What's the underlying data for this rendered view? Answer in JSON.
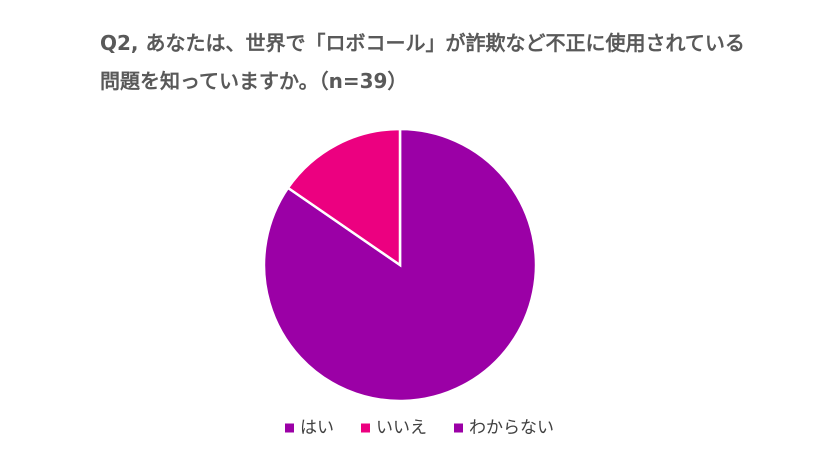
{
  "chart_data": {
    "type": "pie",
    "title": "Q2, あなたは、世界で「ロボコール」が詐欺など不正に使用されている問題を知っていますか。（n=39）",
    "categories": [
      "はい",
      "いいえ",
      "わからない"
    ],
    "values": [
      84.6,
      15.4,
      0
    ],
    "colors": [
      "#9b00a6",
      "#ec0080",
      "#9b00a6"
    ],
    "legend": "bottom"
  }
}
